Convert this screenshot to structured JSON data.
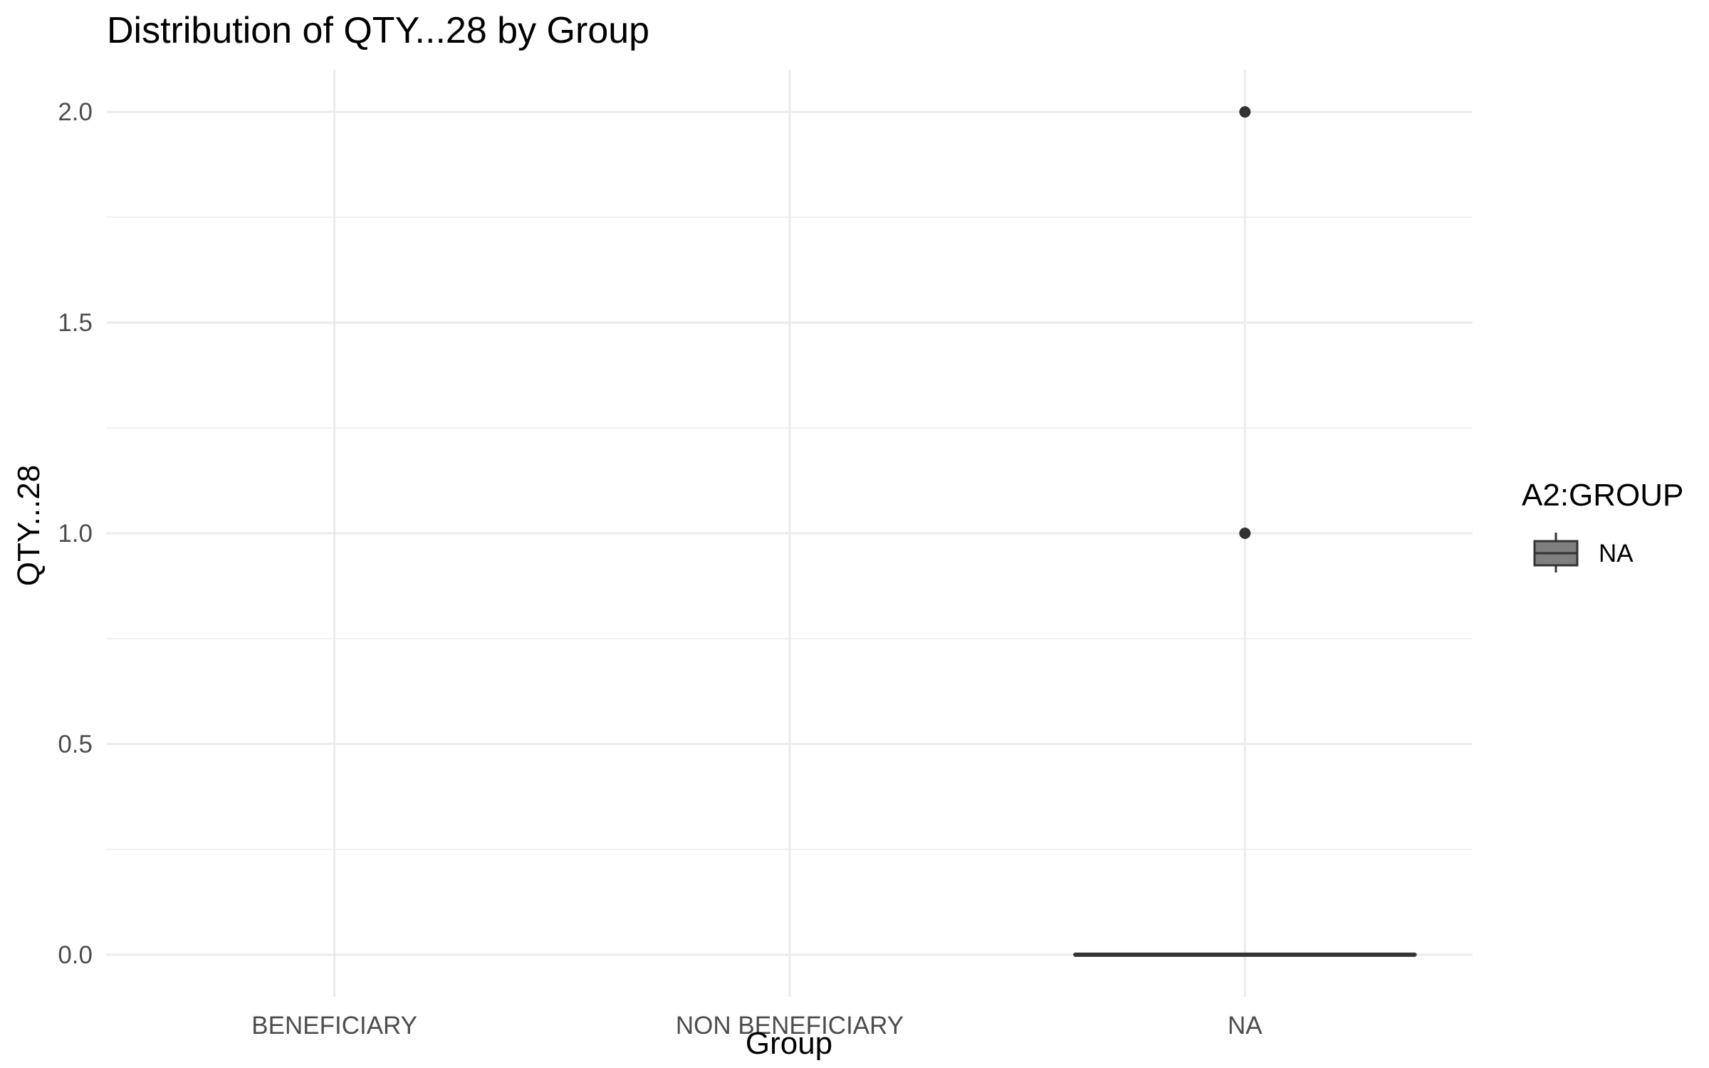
{
  "chart_data": {
    "type": "box",
    "title": "Distribution of QTY...28 by Group",
    "xlabel": "Group",
    "ylabel": "QTY...28",
    "categories": [
      "BENEFICIARY",
      "NON BENEFICIARY",
      "NA"
    ],
    "ylim": [
      -0.1,
      2.1
    ],
    "yticks": [
      0.0,
      0.5,
      1.0,
      1.5,
      2.0
    ],
    "ytick_labels": [
      "0.0",
      "0.5",
      "1.0",
      "1.5",
      "2.0"
    ],
    "grid": true,
    "boxes": [
      {
        "category": "NA",
        "min": 0.0,
        "q1": 0.0,
        "median": 0.0,
        "q3": 0.0,
        "max": 0.0,
        "outliers": [
          1.0,
          2.0
        ]
      }
    ],
    "legend": {
      "title": "A2:GROUP",
      "position": "right",
      "items": [
        {
          "label": "NA",
          "fill": "#7f7f7f"
        }
      ]
    },
    "colors": {
      "box_line": "#333333",
      "outlier": "#333333"
    }
  }
}
